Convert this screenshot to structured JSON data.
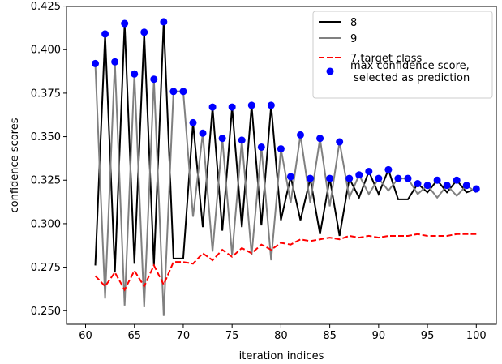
{
  "chart_data": {
    "type": "line",
    "xlabel": "iteration indices",
    "ylabel": "confidence scores",
    "xlim": [
      58.05,
      102.05
    ],
    "ylim": [
      0.2422,
      0.4248
    ],
    "xticks": [
      60,
      65,
      70,
      75,
      80,
      85,
      90,
      95,
      100
    ],
    "yticks": [
      0.25,
      0.275,
      0.3,
      0.325,
      0.35,
      0.375,
      0.4,
      0.425
    ],
    "ytick_labels": [
      "0.250",
      "0.275",
      "0.300",
      "0.325",
      "0.350",
      "0.375",
      "0.400",
      "0.425"
    ],
    "x": [
      61,
      62,
      63,
      64,
      65,
      66,
      67,
      68,
      69,
      70,
      71,
      72,
      73,
      74,
      75,
      76,
      77,
      78,
      79,
      80,
      81,
      82,
      83,
      84,
      85,
      86,
      87,
      88,
      89,
      90,
      91,
      92,
      93,
      94,
      95,
      96,
      97,
      98,
      99,
      100
    ],
    "legend_position": "top-right",
    "series": [
      {
        "name": "8",
        "kind": "line",
        "color": "#000000",
        "dash": "solid",
        "values": [
          0.276,
          0.409,
          0.272,
          0.415,
          0.277,
          0.41,
          0.276,
          0.416,
          0.28,
          0.28,
          0.358,
          0.298,
          0.367,
          0.296,
          0.367,
          0.298,
          0.368,
          0.299,
          0.368,
          0.302,
          0.327,
          0.302,
          0.326,
          0.294,
          0.326,
          0.293,
          0.326,
          0.315,
          0.33,
          0.317,
          0.331,
          0.314,
          0.314,
          0.323,
          0.318,
          0.325,
          0.318,
          0.325,
          0.318,
          0.32
        ]
      },
      {
        "name": "9",
        "kind": "line",
        "color": "#808080",
        "dash": "solid",
        "values": [
          0.392,
          0.257,
          0.393,
          0.253,
          0.386,
          0.252,
          0.383,
          0.247,
          0.376,
          0.376,
          0.304,
          0.352,
          0.284,
          0.349,
          0.282,
          0.348,
          0.282,
          0.344,
          0.279,
          0.343,
          0.312,
          0.351,
          0.312,
          0.349,
          0.31,
          0.347,
          0.315,
          0.328,
          0.317,
          0.326,
          0.319,
          0.326,
          0.326,
          0.317,
          0.322,
          0.315,
          0.322,
          0.316,
          0.322,
          0.318
        ]
      },
      {
        "name": "7,target class",
        "kind": "line",
        "color": "#ff0000",
        "dash": "dashed",
        "values": [
          0.27,
          0.264,
          0.272,
          0.262,
          0.273,
          0.264,
          0.276,
          0.265,
          0.278,
          0.278,
          0.277,
          0.283,
          0.279,
          0.285,
          0.281,
          0.286,
          0.283,
          0.288,
          0.285,
          0.289,
          0.288,
          0.291,
          0.29,
          0.291,
          0.292,
          0.291,
          0.293,
          0.292,
          0.293,
          0.292,
          0.293,
          0.293,
          0.293,
          0.294,
          0.293,
          0.293,
          0.293,
          0.294,
          0.294,
          0.294
        ]
      },
      {
        "name": "max confidence score,\n selected as prediction",
        "kind": "scatter",
        "color": "#0000ff",
        "values": [
          0.392,
          0.409,
          0.393,
          0.415,
          0.386,
          0.41,
          0.383,
          0.416,
          0.376,
          0.376,
          0.358,
          0.352,
          0.367,
          0.349,
          0.367,
          0.348,
          0.368,
          0.344,
          0.368,
          0.343,
          0.327,
          0.351,
          0.326,
          0.349,
          0.326,
          0.347,
          0.326,
          0.328,
          0.33,
          0.326,
          0.331,
          0.326,
          0.326,
          0.323,
          0.322,
          0.325,
          0.322,
          0.325,
          0.322,
          0.32
        ]
      }
    ]
  }
}
